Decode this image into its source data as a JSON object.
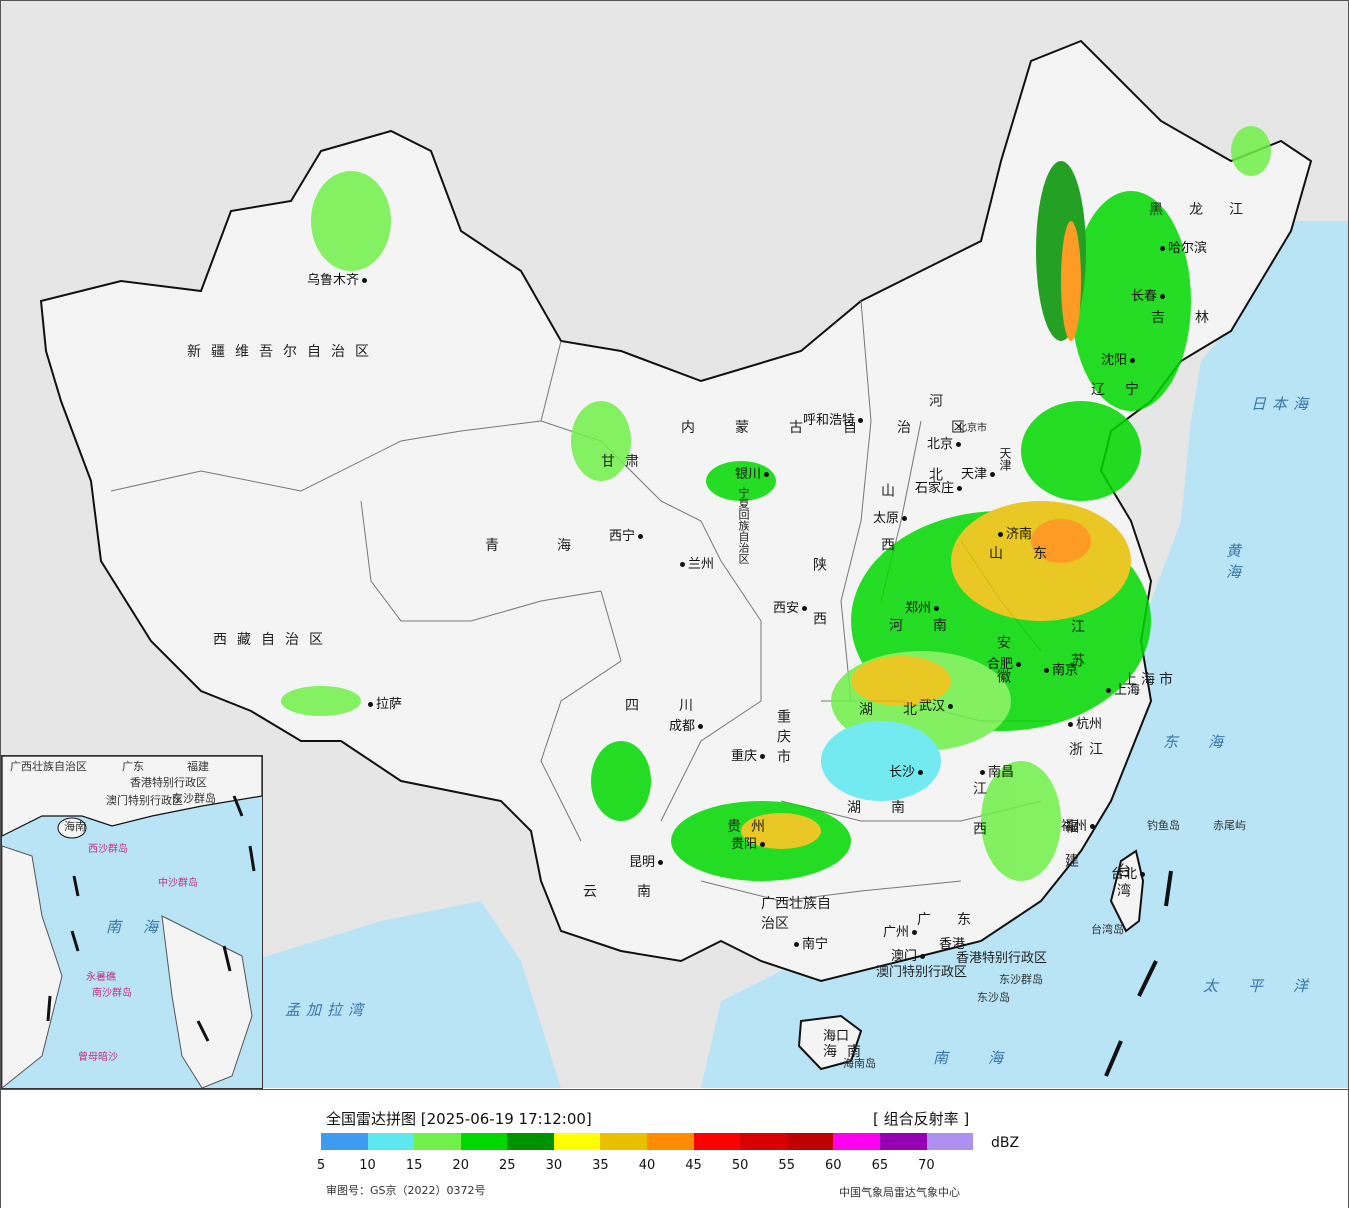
{
  "map": {
    "provinces": [
      {
        "name": "新疆维吾尔自治区"
      },
      {
        "name": "西藏自治区"
      },
      {
        "name": "青海"
      },
      {
        "name": "甘肃"
      },
      {
        "name": "四川"
      },
      {
        "name": "云南"
      },
      {
        "name": "内蒙古自治区"
      },
      {
        "name": "黑龙江"
      },
      {
        "name": "吉林"
      },
      {
        "name": "辽宁"
      },
      {
        "name": "河北"
      },
      {
        "name": "山西"
      },
      {
        "name": "山东"
      },
      {
        "name": "河南"
      },
      {
        "name": "陕西"
      },
      {
        "name": "湖北"
      },
      {
        "name": "湖南"
      },
      {
        "name": "江西"
      },
      {
        "name": "安徽"
      },
      {
        "name": "江苏"
      },
      {
        "name": "浙江"
      },
      {
        "name": "福建"
      },
      {
        "name": "广东"
      },
      {
        "name": "广西壮族自治区"
      },
      {
        "name": "贵州"
      },
      {
        "name": "重庆市"
      },
      {
        "name": "宁夏回族自治区"
      },
      {
        "name": "海南"
      },
      {
        "name": "台湾"
      },
      {
        "name": "上海市"
      },
      {
        "name": "天津"
      },
      {
        "name": "北京市"
      },
      {
        "name": "香港特别行政区"
      },
      {
        "name": "澳门特别行政区"
      }
    ],
    "cities": [
      "乌鲁木齐",
      "拉萨",
      "西宁",
      "兰州",
      "银川",
      "呼和浩特",
      "北京",
      "天津",
      "石家庄",
      "太原",
      "济南",
      "郑州",
      "西安",
      "成都",
      "重庆",
      "贵阳",
      "昆明",
      "南宁",
      "广州",
      "澳门",
      "香港",
      "长沙",
      "武汉",
      "南昌",
      "合肥",
      "南京",
      "上海",
      "杭州",
      "福州",
      "台北",
      "沈阳",
      "长春",
      "哈尔滨",
      "海口"
    ],
    "seas": [
      "日本海",
      "黄海",
      "东海",
      "太平洋",
      "南海",
      "孟加拉湾"
    ],
    "islands": [
      "钓鱼岛",
      "赤尾屿",
      "台湾岛",
      "海南岛",
      "东沙群岛",
      "东沙岛"
    ],
    "inset_labels": [
      "广西壮族自治区",
      "广东",
      "福建",
      "香港特别行政区",
      "澳门特别行政区",
      "东沙群岛",
      "海南",
      "西沙群岛",
      "中沙群岛",
      "南沙群岛",
      "永暑礁",
      "曾母暗沙",
      "南海"
    ],
    "colors": {
      "ocean": "#b8e4f5",
      "land": "#f2f2f2",
      "outside": "#e6e6e6",
      "border": "#111111"
    }
  },
  "legend": {
    "title": "全国雷达拼图 [2025-06-19 17:12:00]",
    "product": "[ 组合反射率 ]",
    "unit": "dBZ",
    "ticks": [
      "5",
      "10",
      "15",
      "20",
      "25",
      "30",
      "35",
      "40",
      "45",
      "50",
      "55",
      "60",
      "65",
      "70"
    ],
    "colors": [
      "#3d9bf0",
      "#5de8f0",
      "#70f048",
      "#00d800",
      "#009200",
      "#ffff00",
      "#e8c000",
      "#ff8c00",
      "#ff0000",
      "#d80000",
      "#c00000",
      "#ff00f0",
      "#9600b4",
      "#ae90f0"
    ],
    "approval": "审图号：GS京（2022）0372号",
    "agency": "中国气象局雷达气象中心"
  }
}
